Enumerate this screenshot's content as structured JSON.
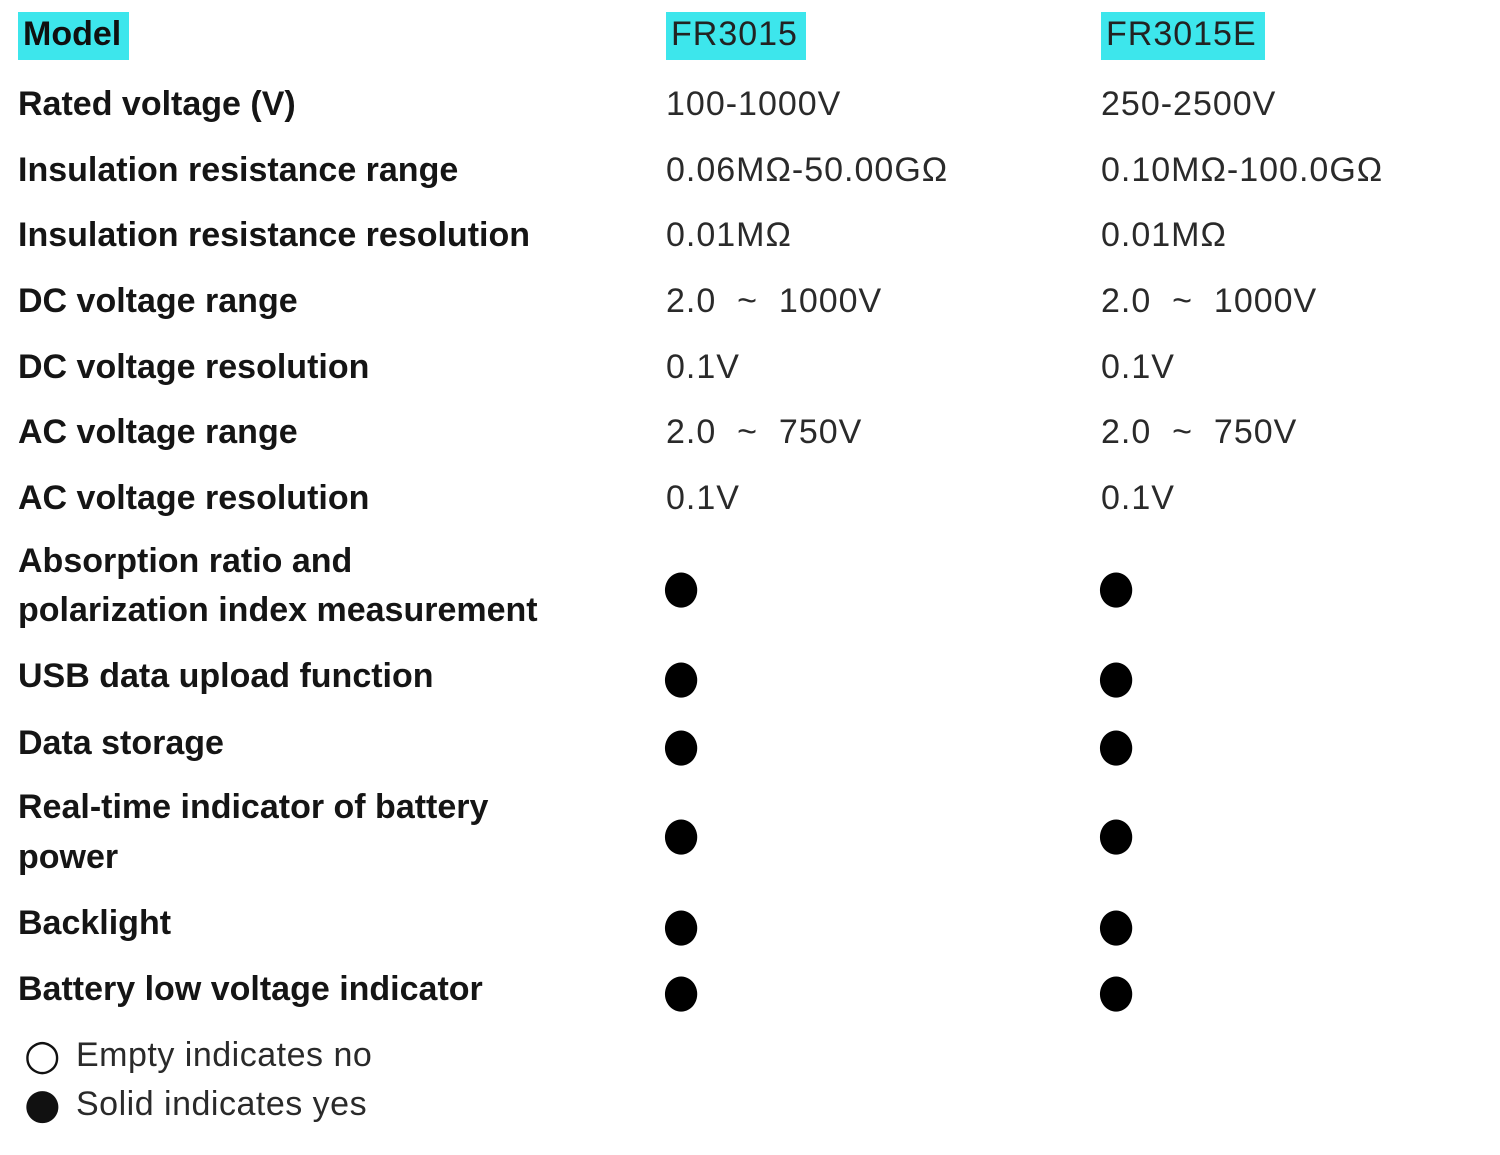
{
  "colors": {
    "highlight": "#3de6ec",
    "label_text": "#151515",
    "value_text": "#2a2a2a",
    "dot": "#000000"
  },
  "table": {
    "header": {
      "label": "Model",
      "col1": "FR3015",
      "col2": "FR3015E"
    },
    "rows": [
      {
        "label": "Rated voltage (V)",
        "col1": "100-1000V",
        "col2": "250-2500V"
      },
      {
        "label": "Insulation resistance range",
        "col1": "0.06MΩ-50.00GΩ",
        "col2": "0.10MΩ-100.0GΩ"
      },
      {
        "label": "Insulation resistance resolution",
        "col1": "0.01MΩ",
        "col2": "0.01MΩ"
      },
      {
        "label": "DC voltage range",
        "col1": "2.0  ~  1000V",
        "col2": "2.0  ~  1000V"
      },
      {
        "label": "DC voltage resolution",
        "col1": "0.1V",
        "col2": "0.1V"
      },
      {
        "label": "AC voltage range",
        "col1": "2.0  ~  750V",
        "col2": "2.0  ~  750V"
      },
      {
        "label": "AC voltage resolution",
        "col1": "0.1V",
        "col2": "0.1V"
      },
      {
        "label": "Absorption ratio and",
        "label2": "polarization index measurement",
        "col1": "●",
        "col2": "●"
      },
      {
        "label": "USB data upload function",
        "col1": "●",
        "col2": "●"
      },
      {
        "label": "Data storage",
        "col1": "●",
        "col2": "●"
      },
      {
        "label": "Real-time indicator of battery",
        "label2": "power",
        "col1": "●",
        "col2": "●"
      },
      {
        "label": "Backlight",
        "col1": "●",
        "col2": "●"
      },
      {
        "label": "Battery low voltage indicator",
        "col1": "●",
        "col2": "●"
      }
    ]
  },
  "legend": {
    "items": [
      {
        "symbol": "○",
        "icon": "empty-circle-icon",
        "text": "Empty indicates no"
      },
      {
        "symbol": "●",
        "icon": "solid-circle-icon",
        "text": "Solid indicates yes"
      }
    ]
  }
}
